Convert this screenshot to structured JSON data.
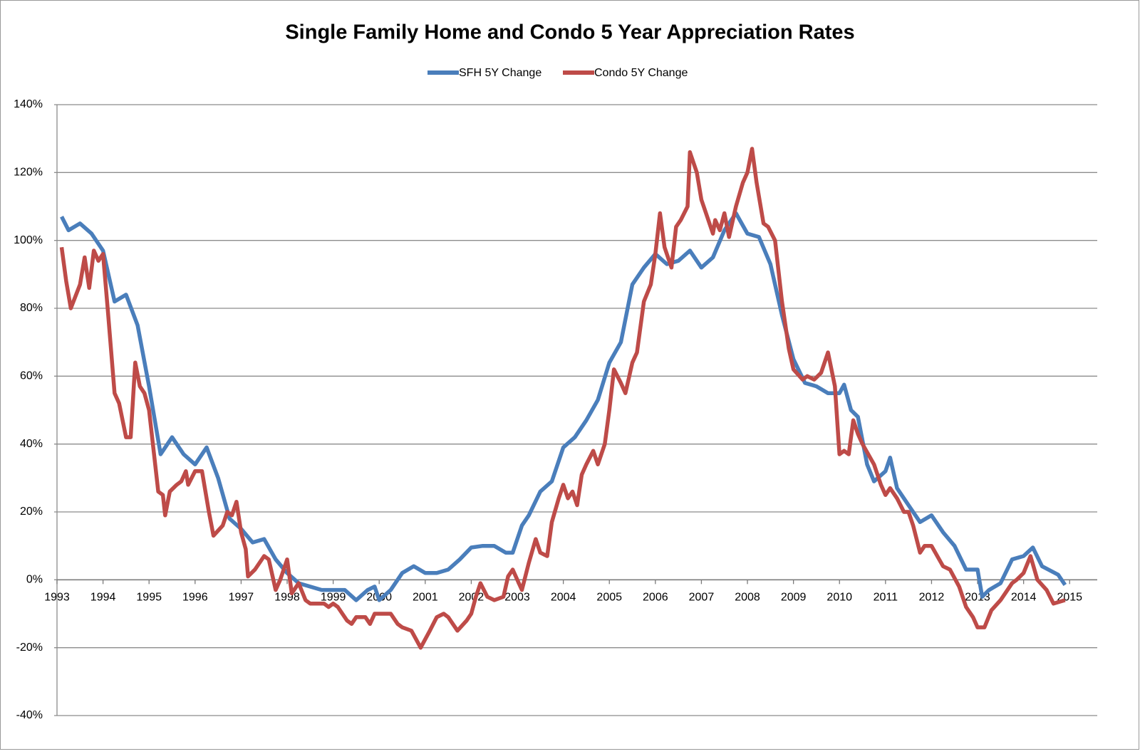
{
  "chart_data": {
    "type": "line",
    "title": "Single Family Home and Condo 5 Year Appreciation Rates",
    "xlim": [
      1993,
      2015.6
    ],
    "xticks": [
      1993,
      1994,
      1995,
      1996,
      1997,
      1998,
      1999,
      2000,
      2001,
      2002,
      2003,
      2004,
      2005,
      2006,
      2007,
      2008,
      2009,
      2010,
      2011,
      2012,
      2013,
      2014,
      2015
    ],
    "ylim": [
      -40,
      140
    ],
    "yticks": [
      {
        "value": -40,
        "label": "-40%"
      },
      {
        "value": -20,
        "label": "-20%"
      },
      {
        "value": 0,
        "label": "0%"
      },
      {
        "value": 20,
        "label": "20%"
      },
      {
        "value": 40,
        "label": "40%"
      },
      {
        "value": 60,
        "label": "60%"
      },
      {
        "value": 80,
        "label": "80%"
      },
      {
        "value": 100,
        "label": "100%"
      },
      {
        "value": 120,
        "label": "120%"
      },
      {
        "value": 140,
        "label": "140%"
      }
    ],
    "grid": true,
    "legend": "top",
    "series": [
      {
        "name": "SFH 5Y Change",
        "color": "#4a7ebb",
        "x": [
          1993.1,
          1993.25,
          1993.5,
          1993.75,
          1994.0,
          1994.25,
          1994.5,
          1994.75,
          1995.0,
          1995.25,
          1995.5,
          1995.75,
          1996.0,
          1996.25,
          1996.5,
          1996.75,
          1997.0,
          1997.25,
          1997.5,
          1997.75,
          1998.0,
          1998.25,
          1998.5,
          1998.75,
          1999.0,
          1999.25,
          1999.5,
          1999.75,
          1999.9,
          2000.0,
          2000.25,
          2000.5,
          2000.75,
          2001.0,
          2001.25,
          2001.5,
          2001.75,
          2002.0,
          2002.25,
          2002.5,
          2002.75,
          2002.9,
          2003.1,
          2003.25,
          2003.5,
          2003.75,
          2004.0,
          2004.25,
          2004.5,
          2004.75,
          2005.0,
          2005.25,
          2005.5,
          2005.75,
          2006.0,
          2006.25,
          2006.5,
          2006.75,
          2007.0,
          2007.25,
          2007.5,
          2007.75,
          2008.0,
          2008.25,
          2008.5,
          2008.75,
          2009.0,
          2009.25,
          2009.5,
          2009.75,
          2010.0,
          2010.1,
          2010.25,
          2010.4,
          2010.6,
          2010.75,
          2011.0,
          2011.1,
          2011.25,
          2011.5,
          2011.75,
          2012.0,
          2012.25,
          2012.5,
          2012.75,
          2013.0,
          2013.1,
          2013.25,
          2013.5,
          2013.75,
          2014.0,
          2014.2,
          2014.4,
          2014.75,
          2014.9
        ],
        "values": [
          107,
          103,
          105,
          102,
          97,
          82,
          84,
          75,
          57,
          37,
          42,
          37,
          34,
          39,
          30,
          18,
          15,
          11,
          12,
          6,
          2,
          -1,
          -2,
          -3,
          -3,
          -3,
          -6,
          -3,
          -2,
          -6,
          -3,
          2,
          4,
          2,
          2,
          3,
          6,
          9.5,
          10,
          10,
          8,
          8,
          16,
          19,
          26,
          29,
          39,
          42,
          47,
          53,
          64,
          70,
          87,
          92,
          96,
          93,
          94,
          97,
          92,
          95,
          103,
          108,
          102,
          101,
          93,
          78,
          65,
          58,
          57,
          55,
          55,
          57.5,
          50,
          48,
          34,
          29,
          32,
          36,
          27,
          22,
          17,
          19,
          14,
          10,
          3,
          3,
          -5,
          -3,
          -1,
          6,
          7,
          9.5,
          4,
          1.5,
          -1.5
        ]
      },
      {
        "name": "Condo 5Y Change",
        "color": "#be4b48",
        "x": [
          1993.1,
          1993.2,
          1993.3,
          1993.5,
          1993.6,
          1993.7,
          1993.8,
          1993.9,
          1994.0,
          1994.1,
          1994.25,
          1994.35,
          1994.5,
          1994.6,
          1994.7,
          1994.8,
          1994.9,
          1995.0,
          1995.2,
          1995.3,
          1995.35,
          1995.45,
          1995.6,
          1995.7,
          1995.8,
          1995.85,
          1996.0,
          1996.15,
          1996.3,
          1996.4,
          1996.6,
          1996.7,
          1996.8,
          1996.9,
          1997.0,
          1997.1,
          1997.15,
          1997.3,
          1997.5,
          1997.6,
          1997.75,
          1997.85,
          1998.0,
          1998.1,
          1998.25,
          1998.4,
          1998.5,
          1998.8,
          1998.9,
          1999.0,
          1999.1,
          1999.3,
          1999.4,
          1999.5,
          1999.7,
          1999.8,
          1999.9,
          2000.0,
          2000.25,
          2000.4,
          2000.5,
          2000.7,
          2000.9,
          2001.1,
          2001.25,
          2001.4,
          2001.5,
          2001.7,
          2001.9,
          2002.0,
          2002.1,
          2002.2,
          2002.35,
          2002.5,
          2002.7,
          2002.8,
          2002.9,
          2003.0,
          2003.1,
          2003.25,
          2003.4,
          2003.5,
          2003.65,
          2003.75,
          2003.9,
          2004.0,
          2004.1,
          2004.2,
          2004.3,
          2004.4,
          2004.5,
          2004.65,
          2004.75,
          2004.9,
          2005.0,
          2005.1,
          2005.25,
          2005.35,
          2005.5,
          2005.6,
          2005.75,
          2005.9,
          2006.0,
          2006.1,
          2006.2,
          2006.35,
          2006.45,
          2006.55,
          2006.7,
          2006.75,
          2006.9,
          2007.0,
          2007.1,
          2007.25,
          2007.3,
          2007.4,
          2007.5,
          2007.6,
          2007.75,
          2007.9,
          2008.0,
          2008.1,
          2008.2,
          2008.35,
          2008.45,
          2008.6,
          2008.75,
          2008.9,
          2009.0,
          2009.2,
          2009.3,
          2009.45,
          2009.6,
          2009.75,
          2009.9,
          2010.0,
          2010.1,
          2010.2,
          2010.3,
          2010.4,
          2010.5,
          2010.75,
          2010.9,
          2011.0,
          2011.1,
          2011.25,
          2011.4,
          2011.5,
          2011.6,
          2011.75,
          2011.85,
          2012.0,
          2012.25,
          2012.4,
          2012.6,
          2012.75,
          2012.9,
          2013.0,
          2013.15,
          2013.3,
          2013.5,
          2013.75,
          2013.85,
          2014.0,
          2014.15,
          2014.3,
          2014.5,
          2014.65,
          2014.9
        ],
        "values": [
          98,
          88,
          80,
          87,
          95,
          86,
          97,
          94,
          96,
          80,
          55,
          52,
          42,
          42,
          64,
          57,
          55,
          50,
          26,
          25,
          19,
          26,
          28,
          29,
          32,
          28,
          32,
          32,
          20,
          13,
          16,
          20,
          19,
          23,
          14,
          9,
          1,
          3,
          7,
          6,
          -3,
          0,
          6,
          -4,
          -1,
          -6,
          -7,
          -7,
          -8,
          -7,
          -8,
          -12,
          -13,
          -11,
          -11,
          -13,
          -10,
          -10,
          -10,
          -13,
          -14,
          -15,
          -20,
          -15,
          -11,
          -10,
          -11,
          -15,
          -12,
          -10,
          -5,
          -1,
          -5,
          -6,
          -5,
          1,
          3,
          0,
          -3,
          5,
          12,
          8,
          7,
          17,
          24,
          28,
          24,
          26,
          22,
          31,
          34,
          38,
          34,
          40,
          50,
          62,
          58,
          55,
          64,
          67,
          82,
          87,
          96,
          108,
          98,
          92,
          104,
          106,
          110,
          126,
          120,
          112,
          108,
          102,
          106,
          103,
          108,
          101,
          110,
          117,
          120,
          127,
          117,
          105,
          104,
          100,
          82,
          68,
          62,
          59,
          60,
          59,
          61,
          67,
          57,
          37,
          38,
          37,
          47,
          43,
          40,
          34,
          28,
          25,
          27,
          24,
          20,
          20,
          16,
          8,
          10,
          10,
          4,
          3,
          -2,
          -8,
          -11,
          -14,
          -14,
          -9,
          -6,
          -1,
          0,
          2,
          7,
          0,
          -3,
          -7,
          -6
        ]
      }
    ]
  }
}
